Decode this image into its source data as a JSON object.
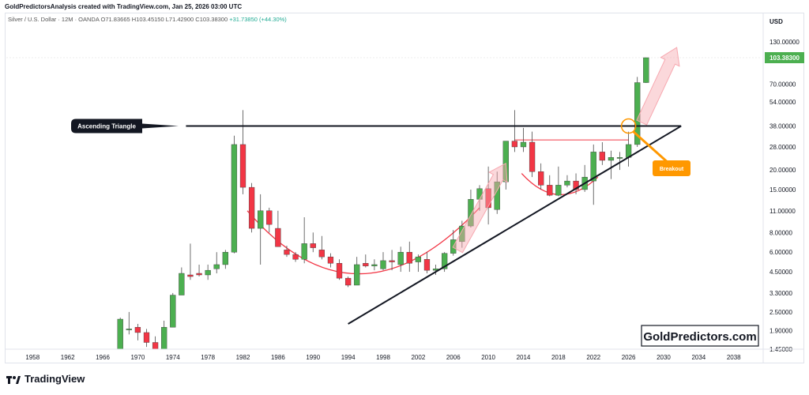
{
  "header": {
    "attribution": "GoldPredictorsAnalysis created with TradingView.com, Jan 25, 2026 03:00 UTC"
  },
  "legend": {
    "symbol": "Silver / U.S. Dollar · 12M · OANDA",
    "open": "O71.83665",
    "high": "H103.45150",
    "low": "L71.42900",
    "close": "C103.38300",
    "change": "+31.73850 (+44.30%)"
  },
  "currency": "USD",
  "price_tag": "103.38300",
  "annotations": {
    "triangle_label": "Ascending Triangle",
    "breakout_label": "Breakout",
    "watermark": "GoldPredictors.com"
  },
  "footer": {
    "brand": "TradingView"
  },
  "colors": {
    "up": "#4caf50",
    "down": "#f23645",
    "pattern_red": "#f23645",
    "breakout_orange": "#ff9800",
    "arrow_pink": "#f7a8b0"
  },
  "chart_data": {
    "type": "candlestick",
    "title": "Silver / U.S. Dollar · 12M · OANDA",
    "y_scale": "log",
    "ylim": [
      1.45,
      170
    ],
    "y_ticks": [
      "130.00000",
      "100.00000",
      "70.00000",
      "54.00000",
      "38.00000",
      "28.00000",
      "20.00000",
      "15.00000",
      "11.00000",
      "8.00000",
      "6.00000",
      "4.50000",
      "3.30000",
      "2.50000",
      "1.90000",
      "1.45000"
    ],
    "y_tick_values": [
      130,
      100,
      70,
      54,
      38,
      28,
      20,
      15,
      11,
      8,
      6,
      4.5,
      3.3,
      2.5,
      1.9,
      1.45
    ],
    "x_ticks": [
      "1958",
      "1962",
      "1966",
      "1970",
      "1974",
      "1978",
      "1982",
      "1986",
      "1990",
      "1994",
      "1998",
      "2002",
      "2006",
      "2010",
      "2014",
      "2018",
      "2022",
      "2026",
      "2030",
      "2034",
      "2038"
    ],
    "xlim": [
      1955,
      2041
    ],
    "candles": [
      {
        "year": 1968,
        "o": 1.45,
        "h": 2.3,
        "l": 1.45,
        "c": 2.25
      },
      {
        "year": 1969,
        "o": 1.95,
        "h": 2.5,
        "l": 1.8,
        "c": 1.95
      },
      {
        "year": 1970,
        "o": 2.0,
        "h": 2.1,
        "l": 1.65,
        "c": 1.85
      },
      {
        "year": 1971,
        "o": 1.85,
        "h": 1.95,
        "l": 1.5,
        "c": 1.6
      },
      {
        "year": 1972,
        "o": 1.6,
        "h": 1.75,
        "l": 1.45,
        "c": 1.45
      },
      {
        "year": 1973,
        "o": 1.45,
        "h": 2.2,
        "l": 1.45,
        "c": 2.0
      },
      {
        "year": 1974,
        "o": 2.0,
        "h": 3.3,
        "l": 2.0,
        "c": 3.2
      },
      {
        "year": 1975,
        "o": 3.2,
        "h": 4.8,
        "l": 3.3,
        "c": 4.4
      },
      {
        "year": 1976,
        "o": 4.3,
        "h": 6.8,
        "l": 4.0,
        "c": 4.2
      },
      {
        "year": 1977,
        "o": 4.4,
        "h": 5.0,
        "l": 4.2,
        "c": 4.3
      },
      {
        "year": 1978,
        "o": 4.3,
        "h": 5.0,
        "l": 4.0,
        "c": 4.6
      },
      {
        "year": 1979,
        "o": 4.7,
        "h": 6.0,
        "l": 4.4,
        "c": 5.0
      },
      {
        "year": 1980,
        "o": 5.0,
        "h": 6.2,
        "l": 4.7,
        "c": 6.0
      },
      {
        "year": 1981,
        "o": 6.0,
        "h": 33.0,
        "l": 5.9,
        "c": 29.0
      },
      {
        "year": 1982,
        "o": 29.0,
        "h": 48.0,
        "l": 14.0,
        "c": 15.5
      },
      {
        "year": 1983,
        "o": 15.5,
        "h": 16.5,
        "l": 8.0,
        "c": 8.5
      },
      {
        "year": 1984,
        "o": 8.5,
        "h": 14.0,
        "l": 5.0,
        "c": 11.0
      },
      {
        "year": 1985,
        "o": 11.0,
        "h": 11.5,
        "l": 8.0,
        "c": 9.0
      },
      {
        "year": 1986,
        "o": 8.5,
        "h": 11.0,
        "l": 6.5,
        "c": 6.5
      },
      {
        "year": 1987,
        "o": 6.2,
        "h": 6.6,
        "l": 5.6,
        "c": 5.8
      },
      {
        "year": 1988,
        "o": 5.8,
        "h": 6.0,
        "l": 5.2,
        "c": 5.4
      },
      {
        "year": 1989,
        "o": 5.4,
        "h": 10.0,
        "l": 5.1,
        "c": 6.8
      },
      {
        "year": 1990,
        "o": 6.8,
        "h": 8.0,
        "l": 6.0,
        "c": 6.4
      },
      {
        "year": 1991,
        "o": 6.2,
        "h": 7.6,
        "l": 5.4,
        "c": 5.6
      },
      {
        "year": 1992,
        "o": 5.6,
        "h": 5.9,
        "l": 4.8,
        "c": 5.1
      },
      {
        "year": 1993,
        "o": 5.1,
        "h": 5.4,
        "l": 4.0,
        "c": 4.1
      },
      {
        "year": 1994,
        "o": 4.1,
        "h": 4.2,
        "l": 3.6,
        "c": 3.7
      },
      {
        "year": 1995,
        "o": 3.7,
        "h": 5.6,
        "l": 3.7,
        "c": 5.0
      },
      {
        "year": 1996,
        "o": 5.1,
        "h": 5.8,
        "l": 4.8,
        "c": 4.9
      },
      {
        "year": 1997,
        "o": 4.9,
        "h": 5.4,
        "l": 4.6,
        "c": 5.0
      },
      {
        "year": 1998,
        "o": 4.7,
        "h": 6.0,
        "l": 4.6,
        "c": 5.3
      },
      {
        "year": 1999,
        "o": 5.3,
        "h": 6.2,
        "l": 4.6,
        "c": 5.2
      },
      {
        "year": 2000,
        "o": 5.0,
        "h": 6.5,
        "l": 4.5,
        "c": 6.0
      },
      {
        "year": 2001,
        "o": 6.0,
        "h": 7.0,
        "l": 4.5,
        "c": 5.1
      },
      {
        "year": 2002,
        "o": 5.2,
        "h": 5.8,
        "l": 4.5,
        "c": 5.6
      },
      {
        "year": 2003,
        "o": 5.4,
        "h": 6.0,
        "l": 4.4,
        "c": 4.6
      },
      {
        "year": 2004,
        "o": 4.6,
        "h": 5.0,
        "l": 4.3,
        "c": 4.7
      },
      {
        "year": 2005,
        "o": 4.7,
        "h": 6.0,
        "l": 4.5,
        "c": 5.9
      },
      {
        "year": 2006,
        "o": 5.9,
        "h": 8.3,
        "l": 5.7,
        "c": 7.2
      },
      {
        "year": 2007,
        "o": 7.0,
        "h": 9.5,
        "l": 6.4,
        "c": 8.8
      },
      {
        "year": 2008,
        "o": 8.8,
        "h": 15.0,
        "l": 8.6,
        "c": 13.0
      },
      {
        "year": 2009,
        "o": 13.0,
        "h": 16.0,
        "l": 11.0,
        "c": 15.2
      },
      {
        "year": 2010,
        "o": 15.2,
        "h": 21.0,
        "l": 9.0,
        "c": 11.5
      },
      {
        "year": 2011,
        "o": 11.2,
        "h": 19.5,
        "l": 10.5,
        "c": 16.8
      },
      {
        "year": 2012,
        "o": 16.8,
        "h": 30.0,
        "l": 15.0,
        "c": 30.5
      },
      {
        "year": 2013,
        "o": 30.5,
        "h": 48.0,
        "l": 26.0,
        "c": 28.0
      },
      {
        "year": 2014,
        "o": 28.0,
        "h": 37.0,
        "l": 26.0,
        "c": 30.0
      },
      {
        "year": 2015,
        "o": 30.0,
        "h": 35.0,
        "l": 18.0,
        "c": 19.5
      },
      {
        "year": 2016,
        "o": 19.5,
        "h": 22.0,
        "l": 15.0,
        "c": 16.0
      },
      {
        "year": 2017,
        "o": 16.0,
        "h": 18.5,
        "l": 13.6,
        "c": 13.8
      },
      {
        "year": 2018,
        "o": 13.8,
        "h": 21.0,
        "l": 13.6,
        "c": 16.0
      },
      {
        "year": 2019,
        "o": 16.0,
        "h": 18.5,
        "l": 15.5,
        "c": 17.0
      },
      {
        "year": 2020,
        "o": 17.0,
        "h": 19.0,
        "l": 14.0,
        "c": 15.0
      },
      {
        "year": 2021,
        "o": 15.0,
        "h": 21.5,
        "l": 14.5,
        "c": 18.0
      },
      {
        "year": 2022,
        "o": 17.0,
        "h": 29.0,
        "l": 12.0,
        "c": 26.0
      },
      {
        "year": 2023,
        "o": 26.0,
        "h": 30.0,
        "l": 21.5,
        "c": 23.0
      },
      {
        "year": 2024,
        "o": 23.0,
        "h": 26.5,
        "l": 17.5,
        "c": 24.0
      },
      {
        "year": 2025,
        "o": 24.0,
        "h": 26.0,
        "l": 20.0,
        "c": 24.0
      },
      {
        "year": 2026,
        "o": 24.0,
        "h": 35.0,
        "l": 21.0,
        "c": 29.0
      },
      {
        "year": 2027,
        "o": 29.0,
        "h": 78.0,
        "l": 28.0,
        "c": 71.8
      },
      {
        "year": 2028,
        "o": 71.8,
        "h": 103.45,
        "l": 71.4,
        "c": 103.38
      }
    ]
  }
}
